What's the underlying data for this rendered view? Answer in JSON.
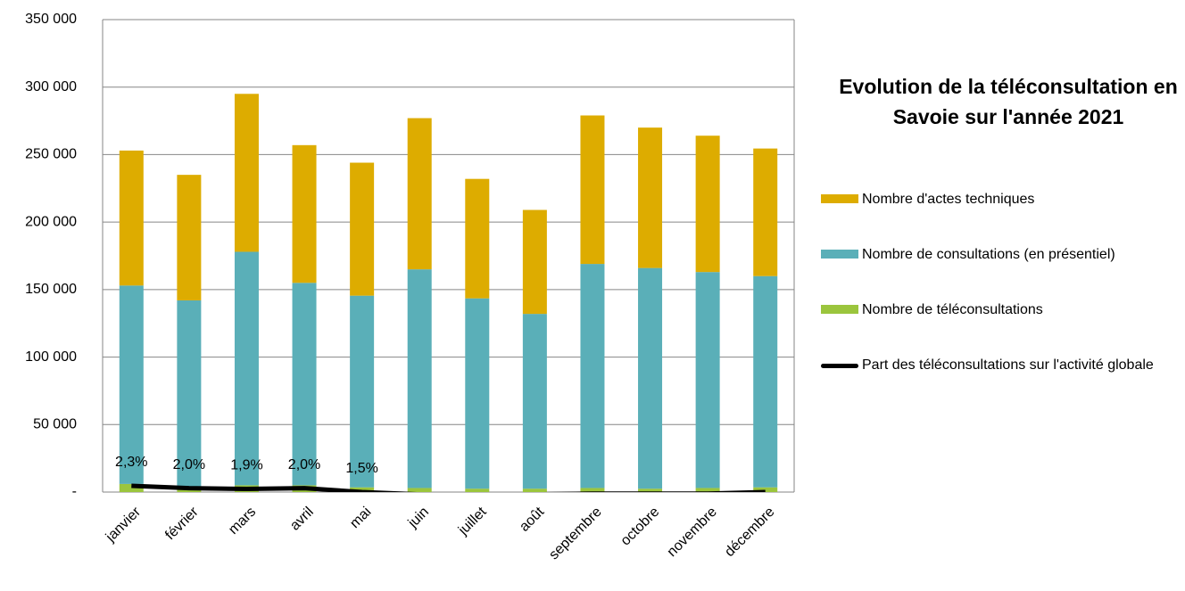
{
  "chart_data": {
    "type": "bar",
    "stacked": true,
    "title": "Evolution de la téléconsultation en Savoie sur l'année 2021",
    "categories": [
      "janvier",
      "février",
      "mars",
      "avril",
      "mai",
      "juin",
      "juillet",
      "août",
      "septembre",
      "octobre",
      "novembre",
      "décembre"
    ],
    "series": [
      {
        "name": "Nombre de téléconsultations",
        "color": "#9bc53d",
        "values": [
          6000,
          4000,
          5000,
          5000,
          3500,
          3000,
          2500,
          2500,
          3000,
          2500,
          3000,
          3500
        ]
      },
      {
        "name": "Nombre de consultations (en présentiel)",
        "color": "#5aafb8",
        "values": [
          147000,
          138000,
          173000,
          150000,
          142000,
          162000,
          141000,
          129500,
          166000,
          163500,
          160000,
          156500
        ]
      },
      {
        "name": "Nombre d'actes techniques",
        "color": "#ddac00",
        "values": [
          100000,
          93000,
          117000,
          102000,
          98500,
          112000,
          88500,
          77000,
          110000,
          104000,
          101000,
          94500
        ]
      },
      {
        "name": "Part des téléconsultations sur l'activité globale",
        "color": "#000000",
        "type": "line",
        "axis": "y2",
        "values": [
          2.3,
          2.0,
          1.9,
          2.0,
          1.5,
          1.2,
          1.2,
          1.2,
          1.3,
          1.3,
          1.3,
          1.5
        ],
        "value_labels": [
          "2,3%",
          "2,0%",
          "1,9%",
          "2,0%",
          "1,5%",
          null,
          null,
          null,
          null,
          null,
          null,
          null
        ]
      }
    ],
    "ylim": [
      0,
      350000
    ],
    "yticks": [
      {
        "value": 0,
        "label": "-"
      },
      {
        "value": 50000,
        "label": "50 000"
      },
      {
        "value": 100000,
        "label": "100 000"
      },
      {
        "value": 150000,
        "label": "150 000"
      },
      {
        "value": 200000,
        "label": "200 000"
      },
      {
        "value": 250000,
        "label": "250 000"
      },
      {
        "value": 300000,
        "label": "300 000"
      },
      {
        "value": 350000,
        "label": "350 000"
      }
    ],
    "y2lim": [
      1.5,
      62
    ],
    "grid": true,
    "legend": "right"
  }
}
